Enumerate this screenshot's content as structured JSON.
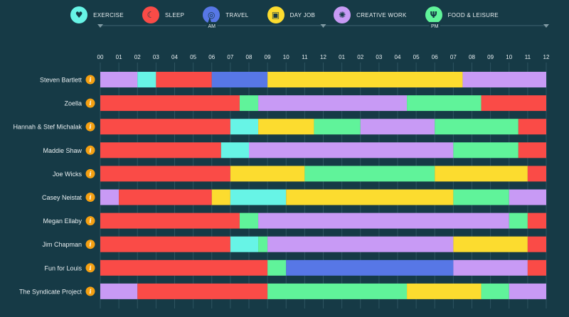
{
  "legend": [
    {
      "label": "EXERCISE",
      "color": "#67f4e6",
      "icon": "heart-pulse-icon",
      "glyph": "♥"
    },
    {
      "label": "SLEEP",
      "color": "#fa4b47",
      "icon": "moon-icon",
      "glyph": "☾"
    },
    {
      "label": "TRAVEL",
      "color": "#5777e6",
      "icon": "steering-wheel-icon",
      "glyph": "◎"
    },
    {
      "label": "DAY JOB",
      "color": "#fcdc2f",
      "icon": "briefcase-icon",
      "glyph": "▣"
    },
    {
      "label": "CREATIVE WORK",
      "color": "#c89af5",
      "icon": "lightbulb-icon",
      "glyph": "✺"
    },
    {
      "label": "FOOD & LEISURE",
      "color": "#60f39a",
      "icon": "fork-knife-icon",
      "glyph": "Ψ"
    }
  ],
  "chart_data": {
    "type": "timeline",
    "am_label": "AM",
    "pm_label": "PM",
    "tick_labels": [
      "00",
      "01",
      "02",
      "03",
      "04",
      "05",
      "06",
      "07",
      "08",
      "09",
      "10",
      "11",
      "12",
      "01",
      "02",
      "03",
      "04",
      "05",
      "06",
      "07",
      "08",
      "09",
      "10",
      "11",
      "12"
    ],
    "xlim": [
      0,
      24
    ],
    "info_glyph": "i",
    "rows": [
      {
        "name": "Steven Bartlett",
        "segments": [
          [
            "CREATIVE WORK",
            0,
            2
          ],
          [
            "EXERCISE",
            2,
            3
          ],
          [
            "SLEEP",
            3,
            6
          ],
          [
            "TRAVEL",
            6,
            9
          ],
          [
            "DAY JOB",
            9,
            19.5
          ],
          [
            "CREATIVE WORK",
            19.5,
            24
          ]
        ]
      },
      {
        "name": "Zoella",
        "segments": [
          [
            "SLEEP",
            0,
            7.5
          ],
          [
            "FOOD & LEISURE",
            7.5,
            8.5
          ],
          [
            "CREATIVE WORK",
            8.5,
            16.5
          ],
          [
            "FOOD & LEISURE",
            16.5,
            20.5
          ],
          [
            "SLEEP",
            20.5,
            24
          ]
        ]
      },
      {
        "name": "Hannah & Stef Michalak",
        "segments": [
          [
            "SLEEP",
            0,
            7
          ],
          [
            "EXERCISE",
            7,
            8.5
          ],
          [
            "DAY JOB",
            8.5,
            11.5
          ],
          [
            "FOOD & LEISURE",
            11.5,
            14
          ],
          [
            "CREATIVE WORK",
            14,
            18
          ],
          [
            "FOOD & LEISURE",
            18,
            22.5
          ],
          [
            "SLEEP",
            22.5,
            24
          ]
        ]
      },
      {
        "name": "Maddie Shaw",
        "segments": [
          [
            "SLEEP",
            0,
            6.5
          ],
          [
            "EXERCISE",
            6.5,
            8
          ],
          [
            "CREATIVE WORK",
            8,
            19
          ],
          [
            "FOOD & LEISURE",
            19,
            22.5
          ],
          [
            "SLEEP",
            22.5,
            24
          ]
        ]
      },
      {
        "name": "Joe Wicks",
        "segments": [
          [
            "SLEEP",
            0,
            7
          ],
          [
            "DAY JOB",
            7,
            11
          ],
          [
            "FOOD & LEISURE",
            11,
            18
          ],
          [
            "DAY JOB",
            18,
            23
          ],
          [
            "SLEEP",
            23,
            24
          ]
        ]
      },
      {
        "name": "Casey Neistat",
        "segments": [
          [
            "CREATIVE WORK",
            0,
            1
          ],
          [
            "SLEEP",
            1,
            6
          ],
          [
            "DAY JOB",
            6,
            7
          ],
          [
            "EXERCISE",
            7,
            10
          ],
          [
            "DAY JOB",
            10,
            19
          ],
          [
            "FOOD & LEISURE",
            19,
            22
          ],
          [
            "CREATIVE WORK",
            22,
            24
          ]
        ]
      },
      {
        "name": "Megan Ellaby",
        "segments": [
          [
            "SLEEP",
            0,
            7.5
          ],
          [
            "FOOD & LEISURE",
            7.5,
            8.5
          ],
          [
            "CREATIVE WORK",
            8.5,
            22
          ],
          [
            "FOOD & LEISURE",
            22,
            23
          ],
          [
            "SLEEP",
            23,
            24
          ]
        ]
      },
      {
        "name": "Jim Chapman",
        "segments": [
          [
            "SLEEP",
            0,
            7
          ],
          [
            "EXERCISE",
            7,
            8.5
          ],
          [
            "FOOD & LEISURE",
            8.5,
            9
          ],
          [
            "CREATIVE WORK",
            9,
            19
          ],
          [
            "DAY JOB",
            19,
            23
          ],
          [
            "SLEEP",
            23,
            24
          ]
        ]
      },
      {
        "name": "Fun for Louis",
        "segments": [
          [
            "SLEEP",
            0,
            9
          ],
          [
            "FOOD & LEISURE",
            9,
            10
          ],
          [
            "TRAVEL",
            10,
            19
          ],
          [
            "CREATIVE WORK",
            19,
            23
          ],
          [
            "SLEEP",
            23,
            24
          ]
        ]
      },
      {
        "name": "The Syndicate Project",
        "segments": [
          [
            "CREATIVE WORK",
            0,
            2
          ],
          [
            "SLEEP",
            2,
            9
          ],
          [
            "FOOD & LEISURE",
            9,
            16.5
          ],
          [
            "DAY JOB",
            16.5,
            20.5
          ],
          [
            "FOOD & LEISURE",
            20.5,
            22
          ],
          [
            "CREATIVE WORK",
            22,
            24
          ]
        ]
      }
    ]
  }
}
